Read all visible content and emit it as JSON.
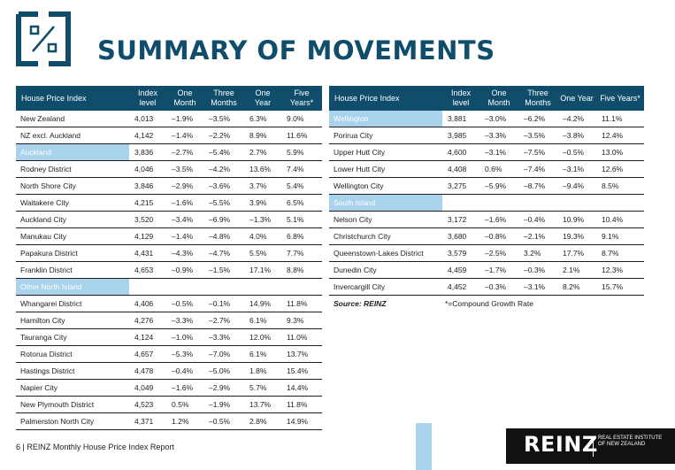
{
  "header": {
    "title": "SUMMARY OF MOVEMENTS"
  },
  "columns": {
    "name": "House Price Index",
    "index": "Index level",
    "one_month": "One Month",
    "three_months": "Three Months",
    "one_year": "One Year",
    "five_years": "Five Years*"
  },
  "left_table": {
    "rows": [
      {
        "name": "New Zealand",
        "index": "4,013",
        "one_month": "–1.9%",
        "three_months": "–3.5%",
        "one_year": "6.3%",
        "five_years": "9.0%"
      },
      {
        "name": "NZ excl. Auckland",
        "index": "4,142",
        "one_month": "–1.4%",
        "three_months": "–2.2%",
        "one_year": "8.9%",
        "five_years": "11.6%"
      },
      {
        "name": "Auckland",
        "index": "3,836",
        "one_month": "–2.7%",
        "three_months": "–5.4%",
        "one_year": "2.7%",
        "five_years": "5.9%"
      },
      {
        "name": "Rodney District",
        "index": "4,046",
        "one_month": "–3.5%",
        "three_months": "–4.2%",
        "one_year": "13.6%",
        "five_years": "7.4%"
      },
      {
        "name": "North Shore City",
        "index": "3,846",
        "one_month": "–2.9%",
        "three_months": "–3.6%",
        "one_year": "3.7%",
        "five_years": "5.4%"
      },
      {
        "name": "Waitakere City",
        "index": "4,215",
        "one_month": "–1.6%",
        "three_months": "–5.5%",
        "one_year": "3.9%",
        "five_years": "6.5%"
      },
      {
        "name": "Auckland City",
        "index": "3,520",
        "one_month": "–3.4%",
        "three_months": "–6.9%",
        "one_year": "–1.3%",
        "five_years": "5.1%"
      },
      {
        "name": "Manukau City",
        "index": "4,129",
        "one_month": "–1.4%",
        "three_months": "–4.8%",
        "one_year": "4.0%",
        "five_years": "6.8%"
      },
      {
        "name": "Papakura District",
        "index": "4,431",
        "one_month": "–4.3%",
        "three_months": "–4.7%",
        "one_year": "5.5%",
        "five_years": "7.7%"
      },
      {
        "name": "Franklin District",
        "index": "4,653",
        "one_month": "–0.9%",
        "three_months": "–1.5%",
        "one_year": "17.1%",
        "five_years": "8.8%"
      }
    ],
    "region_label": "Other North Island",
    "rows2": [
      {
        "name": "Whangarei District",
        "index": "4,406",
        "one_month": "–0.5%",
        "three_months": "–0.1%",
        "one_year": "14.9%",
        "five_years": "11.8%"
      },
      {
        "name": "Hamilton City",
        "index": "4,276",
        "one_month": "–3.3%",
        "three_months": "–2.7%",
        "one_year": "6.1%",
        "five_years": "9.3%"
      },
      {
        "name": "Tauranga City",
        "index": "4,124",
        "one_month": "–1.0%",
        "three_months": "–3.3%",
        "one_year": "12.0%",
        "five_years": "11.0%"
      },
      {
        "name": "Rotorua District",
        "index": "4,657",
        "one_month": "–5.3%",
        "three_months": "–7.0%",
        "one_year": "6.1%",
        "five_years": "13.7%"
      },
      {
        "name": "Hastings District",
        "index": "4,478",
        "one_month": "–0.4%",
        "three_months": "–5.0%",
        "one_year": "1.8%",
        "five_years": "15.4%"
      },
      {
        "name": "Napier City",
        "index": "4,049",
        "one_month": "–1.6%",
        "three_months": "–2.9%",
        "one_year": "5.7%",
        "five_years": "14.4%"
      },
      {
        "name": "New Plymouth District",
        "index": "4,523",
        "one_month": "0.5%",
        "three_months": "–1.9%",
        "one_year": "13.7%",
        "five_years": "11.8%"
      },
      {
        "name": "Palmerston North City",
        "index": "4,371",
        "one_month": "1.2%",
        "three_months": "–0.5%",
        "one_year": "2.8%",
        "five_years": "14.9%"
      }
    ]
  },
  "right_table": {
    "rows": [
      {
        "name": "Wellington",
        "index": "3,881",
        "one_month": "–3.0%",
        "three_months": "–6.2%",
        "one_year": "–4.2%",
        "five_years": "11.1%"
      },
      {
        "name": "Porirua City",
        "index": "3,985",
        "one_month": "–3.3%",
        "three_months": "–3.5%",
        "one_year": "–3.8%",
        "five_years": "12.4%"
      },
      {
        "name": "Upper Hutt City",
        "index": "4,600",
        "one_month": "–3.1%",
        "three_months": "–7.5%",
        "one_year": "–0.5%",
        "five_years": "13.0%"
      },
      {
        "name": "Lower Hutt City",
        "index": "4,408",
        "one_month": "0.6%",
        "three_months": "–7.4%",
        "one_year": "–3.1%",
        "five_years": "12.6%"
      },
      {
        "name": "Wellington City",
        "index": "3,275",
        "one_month": "–5.9%",
        "three_months": "–8.7%",
        "one_year": "–9.4%",
        "five_years": "8.5%"
      }
    ],
    "region_label": "South Island",
    "rows2": [
      {
        "name": "Nelson City",
        "index": "3,172",
        "one_month": "–1.6%",
        "three_months": "–0.4%",
        "one_year": "10.9%",
        "five_years": "10.4%"
      },
      {
        "name": "Christchurch City",
        "index": "3,680",
        "one_month": "–0.8%",
        "three_months": "–2.1%",
        "one_year": "19.3%",
        "five_years": "9.1%"
      },
      {
        "name": "Queenstown-Lakes District",
        "index": "3,579",
        "one_month": "–2.5%",
        "three_months": "3.2%",
        "one_year": "17.7%",
        "five_years": "8.7%"
      },
      {
        "name": "Dunedin City",
        "index": "4,459",
        "one_month": "–1.7%",
        "three_months": "–0.3%",
        "one_year": "2.1%",
        "five_years": "12.3%"
      },
      {
        "name": "Invercargill City",
        "index": "4,452",
        "one_month": "–0.3%",
        "three_months": "–3.1%",
        "one_year": "8.2%",
        "five_years": "15.7%"
      }
    ],
    "source_label": "Source: REINZ",
    "source_note": "*=Compound Growth Rate"
  },
  "footer": {
    "text": "6  |  REINZ Monthly House Price Index Report"
  },
  "brand": {
    "name": "REINZ",
    "subtitle": "REAL ESTATE INSTITUTE OF NEW ZEALAND"
  },
  "colors": {
    "primary": "#0f4d6b",
    "region_highlight": "#a9d2ed"
  }
}
